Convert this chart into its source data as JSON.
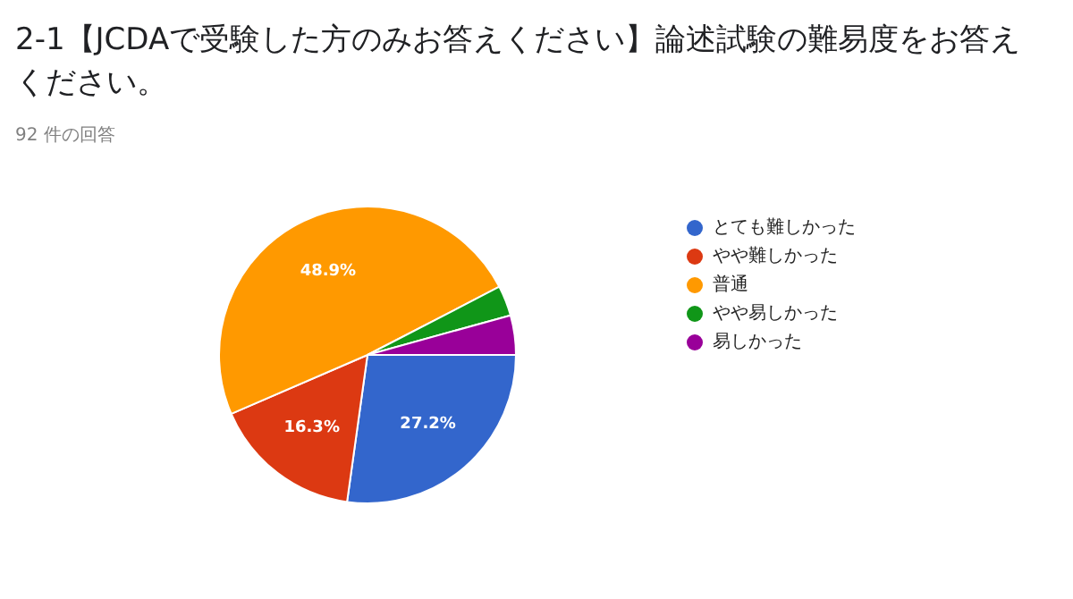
{
  "chart_data": {
    "type": "pie",
    "title": "2-1【JCDAで受験した方のみお答えください】論述試験の難易度をお答えください。",
    "subtitle": "92 件の回答",
    "categories": [
      "とても難しかった",
      "やや難しかった",
      "普通",
      "やや易しかった",
      "易しかった"
    ],
    "values": [
      27.2,
      16.3,
      48.9,
      3.3,
      4.3
    ],
    "value_labels": [
      "27.2%",
      "16.3%",
      "48.9%",
      null,
      null
    ],
    "colors": [
      "#3366cc",
      "#dc3912",
      "#ff9900",
      "#109618",
      "#990099"
    ],
    "legend": "right"
  }
}
